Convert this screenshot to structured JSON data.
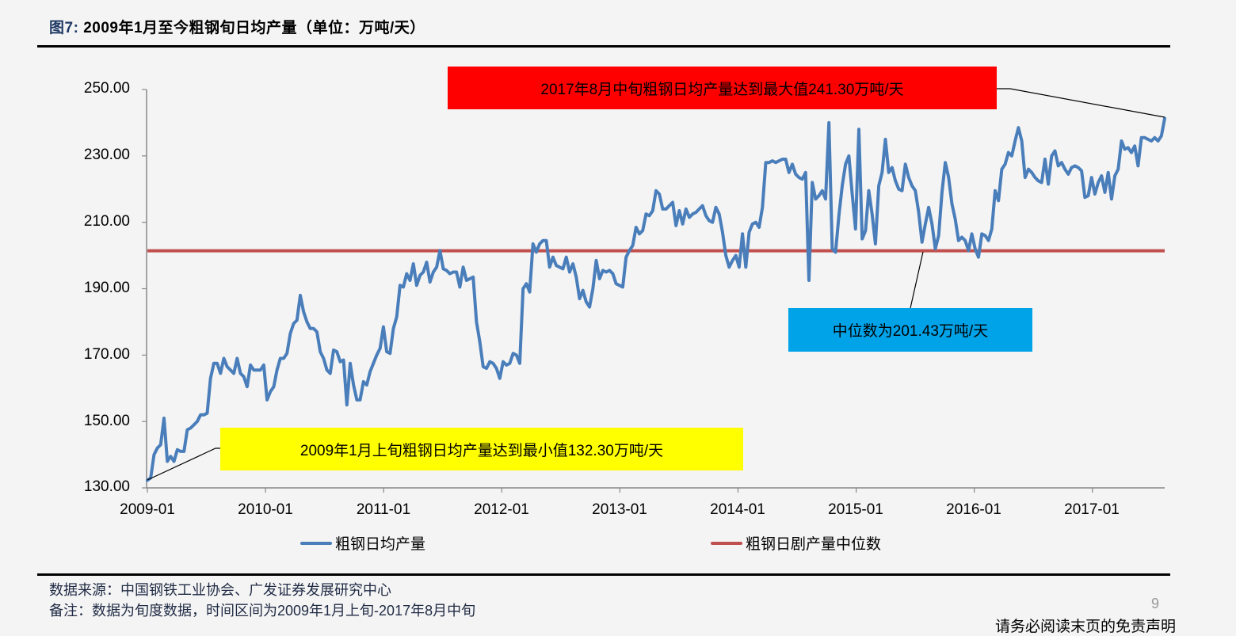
{
  "header": {
    "fig_label": "图7:",
    "title": "2009年1月至今粗钢旬日均产量（单位：万吨/天）"
  },
  "colors": {
    "series_line": "#4a7ebb",
    "median_line": "#c0504d",
    "max_box": "#ff0000",
    "min_box": "#ffff00",
    "median_box": "#00a2e8"
  },
  "annotations": {
    "max": "2017年8月中旬粗钢日均产量达到最大值241.30万吨/天",
    "min": "2009年1月上旬粗钢日均产量达到最小值132.30万吨/天",
    "median": "中位数为201.43万吨/天"
  },
  "legend": {
    "series": "粗钢日均产量",
    "median": "粗钢日剧产量中位数"
  },
  "footer": {
    "source": "数据来源：中国钢铁工业协会、广发证券发展研究中心",
    "note": "备注：数据为旬度数据，时间区间为2009年1月上旬-2017年8月中旬",
    "page": "9",
    "disclaimer": "请务必阅读末页的免责声明"
  },
  "chart_data": {
    "type": "line",
    "title": "2009年1月至今粗钢旬日均产量（单位：万吨/天）",
    "xlabel": "",
    "ylabel": "万吨/天",
    "ylim": [
      130,
      250
    ],
    "yticks": [
      "250.00",
      "230.00",
      "210.00",
      "190.00",
      "170.00",
      "150.00",
      "130.00"
    ],
    "xticks": [
      "2009-01",
      "2010-01",
      "2011-01",
      "2012-01",
      "2013-01",
      "2014-01",
      "2015-01",
      "2016-01",
      "2017-01"
    ],
    "x_start": "2009-01上旬",
    "x_end": "2017-08中旬",
    "frequency": "旬 (10-day)",
    "grid": false,
    "legend_position": "bottom",
    "series": [
      {
        "name": "粗钢日均产量",
        "values": [
          132.3,
          133.0,
          140.0,
          142.0,
          143.0,
          151.0,
          138.0,
          139.5,
          138.0,
          141.5,
          141.0,
          141.0,
          147.5,
          148.0,
          149.0,
          150.0,
          152.0,
          152.0,
          152.5,
          163.0,
          167.5,
          167.5,
          164.5,
          169.0,
          166.5,
          165.5,
          164.5,
          169.0,
          164.5,
          163.5,
          160.5,
          167.0,
          165.5,
          165.5,
          165.5,
          167.0,
          156.5,
          159.0,
          160.5,
          165.5,
          169.0,
          169.0,
          170.5,
          176.5,
          179.5,
          180.5,
          188.0,
          183.0,
          180.0,
          178.0,
          178.0,
          177.0,
          171.0,
          169.0,
          165.5,
          164.5,
          171.5,
          171.0,
          168.0,
          168.5,
          155.0,
          167.5,
          161.0,
          156.5,
          156.5,
          162.0,
          161.0,
          165.0,
          167.5,
          170.0,
          172.0,
          178.5,
          171.0,
          170.5,
          178.0,
          181.5,
          191.0,
          190.5,
          194.5,
          192.5,
          197.5,
          191.0,
          194.0,
          195.0,
          198.0,
          192.0,
          195.0,
          196.5,
          201.5,
          196.0,
          195.5,
          194.5,
          195.0,
          195.0,
          190.5,
          196.5,
          192.5,
          193.0,
          193.5,
          180.0,
          174.0,
          166.5,
          166.0,
          168.0,
          167.5,
          166.0,
          163.0,
          168.0,
          167.0,
          167.5,
          170.5,
          170.0,
          167.5,
          190.0,
          191.5,
          189.0,
          203.5,
          201.0,
          203.5,
          204.5,
          204.5,
          196.5,
          199.5,
          197.0,
          196.5,
          196.0,
          199.5,
          195.0,
          197.5,
          193.5,
          187.0,
          189.5,
          186.0,
          184.5,
          190.0,
          198.5,
          193.0,
          195.5,
          195.0,
          195.5,
          194.5,
          191.5,
          191.0,
          190.5,
          199.5,
          201.5,
          203.0,
          208.5,
          206.5,
          207.5,
          212.5,
          212.0,
          213.5,
          219.5,
          218.5,
          214.0,
          214.0,
          215.0,
          216.0,
          209.0,
          213.5,
          209.5,
          214.0,
          211.5,
          212.5,
          213.0,
          214.0,
          215.0,
          212.0,
          210.5,
          210.0,
          214.5,
          212.5,
          207.0,
          200.0,
          196.5,
          198.5,
          200.0,
          196.5,
          206.5,
          196.5,
          207.0,
          209.5,
          210.0,
          208.5,
          214.5,
          228.0,
          228.0,
          228.5,
          228.0,
          228.5,
          229.0,
          229.0,
          225.0,
          227.5,
          224.5,
          223.5,
          223.0,
          225.0,
          192.5,
          222.0,
          217.0,
          218.0,
          219.5,
          217.0,
          240.0,
          202.0,
          201.0,
          212.0,
          221.0,
          227.5,
          230.0,
          218.5,
          208.0,
          238.0,
          205.0,
          207.5,
          219.5,
          212.5,
          203.5,
          221.0,
          225.0,
          235.0,
          225.0,
          226.5,
          222.5,
          220.0,
          219.5,
          227.5,
          223.5,
          221.0,
          219.5,
          213.0,
          204.0,
          209.5,
          214.5,
          209.5,
          202.0,
          206.0,
          219.0,
          228.0,
          223.5,
          215.5,
          211.0,
          204.5,
          205.5,
          204.5,
          201.5,
          206.5,
          202.0,
          199.5,
          206.5,
          206.0,
          204.5,
          208.0,
          219.5,
          216.5,
          226.0,
          227.5,
          231.0,
          230.0,
          234.5,
          238.5,
          234.5,
          223.5,
          226.0,
          225.0,
          223.5,
          222.5,
          222.0,
          229.0,
          221.5,
          230.0,
          231.5,
          227.0,
          228.0,
          226.0,
          224.5,
          226.5,
          227.0,
          226.5,
          225.5,
          217.5,
          218.0,
          223.5,
          218.5,
          222.0,
          224.0,
          219.0,
          225.0,
          217.0,
          224.0,
          226.0,
          234.5,
          232.0,
          232.5,
          231.0,
          233.0,
          227.0,
          235.5,
          235.5,
          235.0,
          234.5,
          235.5,
          234.5,
          236.0,
          241.3
        ]
      },
      {
        "name": "粗钢日剧产量中位数",
        "constant": 201.43
      }
    ],
    "annotations": [
      {
        "text": "2017年8月中旬粗钢日均产量达到最大值241.30万吨/天",
        "point": [
          "2017-08中旬",
          241.3
        ]
      },
      {
        "text": "2009年1月上旬粗钢日均产量达到最小值132.30万吨/天",
        "point": [
          "2009-01上旬",
          132.3
        ]
      },
      {
        "text": "中位数为201.43万吨/天",
        "point": [
          "median",
          201.43
        ]
      }
    ]
  }
}
